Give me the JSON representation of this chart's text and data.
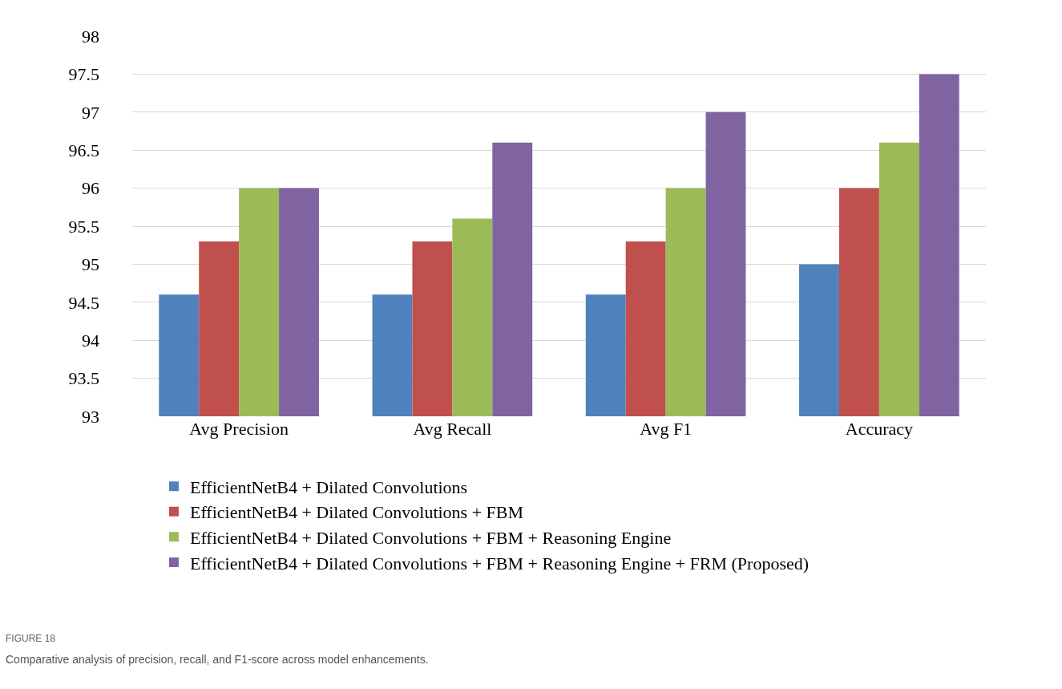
{
  "chart_data": {
    "type": "bar",
    "categories": [
      "Avg Precision",
      "Avg Recall",
      "Avg F1",
      "Accuracy"
    ],
    "series": [
      {
        "name": "EfficientNetB4 + Dilated Convolutions",
        "color": "#4f81bd",
        "values": [
          94.6,
          94.6,
          94.6,
          95.0
        ]
      },
      {
        "name": "EfficientNetB4 + Dilated Convolutions + FBM",
        "color": "#c0504d",
        "values": [
          95.3,
          95.3,
          95.3,
          96.0
        ]
      },
      {
        "name": "EfficientNetB4 + Dilated Convolutions + FBM + Reasoning Engine",
        "color": "#9bbb59",
        "values": [
          96.0,
          95.6,
          96.0,
          96.6
        ]
      },
      {
        "name": "EfficientNetB4 + Dilated Convolutions + FBM + Reasoning Engine + FRM (Proposed)",
        "color": "#8064a2",
        "values": [
          96.0,
          96.6,
          97.0,
          97.5
        ]
      }
    ],
    "ylim": [
      93,
      98
    ],
    "yticks": [
      93,
      93.5,
      94,
      94.5,
      95,
      95.5,
      96,
      96.5,
      97,
      97.5,
      98
    ],
    "grid": "y",
    "legend": "bottom",
    "annotations": [
      "FIGURE 18",
      "Comparative analysis of precision, recall, and F1-score across model enhancements."
    ]
  }
}
